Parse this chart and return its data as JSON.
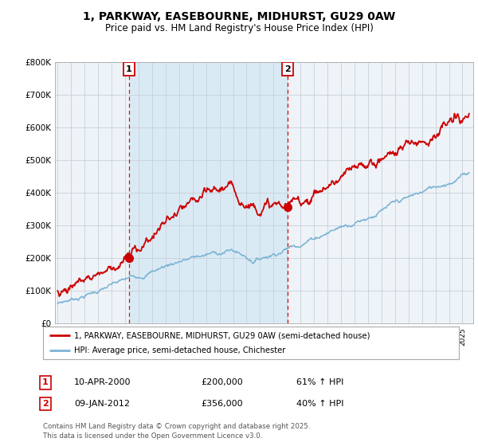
{
  "title": "1, PARKWAY, EASEBOURNE, MIDHURST, GU29 0AW",
  "subtitle": "Price paid vs. HM Land Registry's House Price Index (HPI)",
  "legend_line1": "1, PARKWAY, EASEBOURNE, MIDHURST, GU29 0AW (semi-detached house)",
  "legend_line2": "HPI: Average price, semi-detached house, Chichester",
  "sale1_date": "10-APR-2000",
  "sale1_price": "£200,000",
  "sale1_hpi": "61% ↑ HPI",
  "sale2_date": "09-JAN-2012",
  "sale2_price": "£356,000",
  "sale2_hpi": "40% ↑ HPI",
  "footer": "Contains HM Land Registry data © Crown copyright and database right 2025.\nThis data is licensed under the Open Government Licence v3.0.",
  "hpi_color": "#7ab3d4",
  "price_color": "#cc0000",
  "vline_color": "#cc0000",
  "shade_color": "#daeaf5",
  "background_color": "#ffffff",
  "chart_bg": "#eef3f8",
  "grid_color": "#c8d0d8",
  "ylim": [
    0,
    800000
  ],
  "yticks": [
    0,
    100000,
    200000,
    300000,
    400000,
    500000,
    600000,
    700000,
    800000
  ],
  "ytick_labels": [
    "£0",
    "£100K",
    "£200K",
    "£300K",
    "£400K",
    "£500K",
    "£600K",
    "£700K",
    "£800K"
  ],
  "sale1_x": 2000.27,
  "sale1_y": 200000,
  "sale2_x": 2012.03,
  "sale2_y": 356000,
  "xmin": 1994.8,
  "xmax": 2025.8
}
